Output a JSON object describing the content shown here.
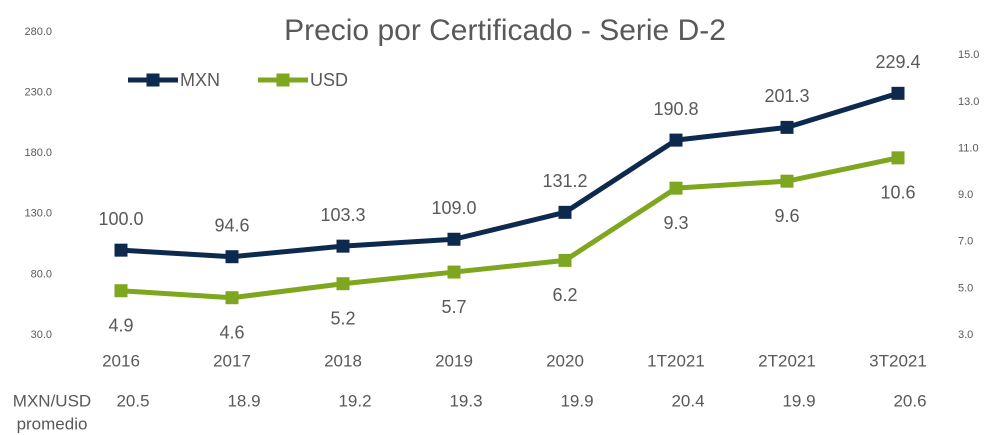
{
  "chart_data": {
    "type": "line",
    "title": "Precio por Certificado - Serie D-2",
    "categories": [
      "2016",
      "2017",
      "2018",
      "2019",
      "2020",
      "1T2021",
      "2T2021",
      "3T2021"
    ],
    "series": [
      {
        "name": "MXN",
        "color": "#0d2a4e",
        "values": [
          100.0,
          94.6,
          103.3,
          109.0,
          131.2,
          190.8,
          201.3,
          229.4
        ],
        "value_labels": [
          "100.0",
          "94.6",
          "103.3",
          "109.0",
          "131.2",
          "190.8",
          "201.3",
          "229.4"
        ]
      },
      {
        "name": "USD",
        "color": "#7ea61f",
        "axis": "y2",
        "values": [
          4.9,
          4.6,
          5.2,
          5.7,
          6.2,
          9.3,
          9.6,
          10.6
        ]
      }
    ],
    "ylim": [
      30,
      280
    ],
    "yticks": [
      {
        "value": 30,
        "label": "30.0"
      },
      {
        "value": 80,
        "label": "80.0"
      },
      {
        "value": 130,
        "label": "130.0"
      },
      {
        "value": 180,
        "label": "180.0"
      },
      {
        "value": 230,
        "label": "230.0"
      },
      {
        "value": 280,
        "label": "280.0"
      }
    ],
    "y2lim": [
      3,
      16
    ],
    "y2ticks": [
      {
        "value": 3,
        "label": "3.0"
      },
      {
        "value": 5,
        "label": "5.0"
      },
      {
        "value": 7,
        "label": "7.0"
      },
      {
        "value": 9,
        "label": "9.0"
      },
      {
        "value": 11,
        "label": "11.0"
      },
      {
        "value": 13,
        "label": "13.0"
      },
      {
        "value": 15,
        "label": "15.0"
      }
    ],
    "legend": "top-left",
    "footer_row": {
      "label_lines": [
        "MXN/USD",
        "promedio"
      ],
      "values": [
        20.5,
        18.9,
        19.2,
        19.3,
        19.9,
        20.4,
        19.9,
        20.6
      ]
    }
  }
}
